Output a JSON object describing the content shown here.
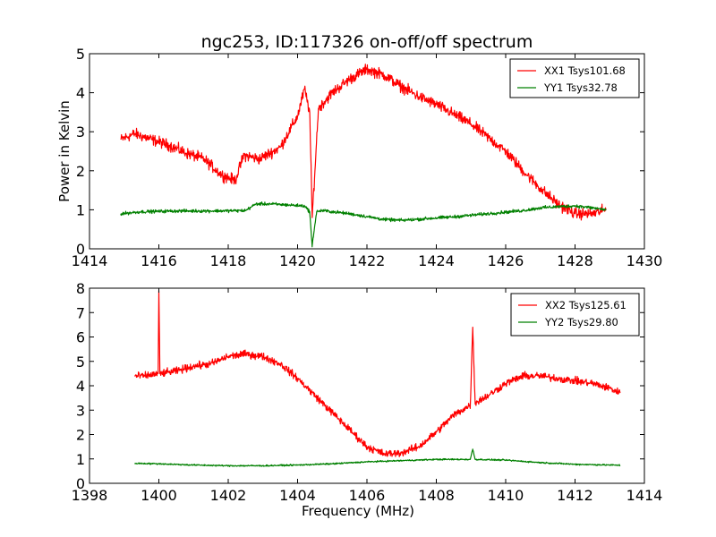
{
  "figure": {
    "title": "ngc253, ID:117326 on-off/off spectrum"
  },
  "chart_data": [
    {
      "type": "line",
      "title": "ngc253, ID:117326 on-off/off spectrum",
      "xlabel": "",
      "ylabel": "Power in Kelvin",
      "xlim": [
        1414,
        1430
      ],
      "ylim": [
        0,
        5
      ],
      "xticks": [
        "1414",
        "1416",
        "1418",
        "1420",
        "1422",
        "1424",
        "1426",
        "1428",
        "1430"
      ],
      "yticks": [
        "0",
        "1",
        "2",
        "3",
        "4",
        "5"
      ],
      "legend_position": "top-right",
      "grid": false,
      "series": [
        {
          "name": "XX1 Tsys101.68",
          "color": "#ff0000",
          "noise": 0.12,
          "x": [
            1414.9,
            1415.3,
            1415.8,
            1416.3,
            1416.8,
            1417.3,
            1417.8,
            1418.2,
            1418.45,
            1418.9,
            1419.5,
            1420.0,
            1420.2,
            1420.35,
            1420.42,
            1420.5,
            1420.6,
            1421.0,
            1421.5,
            1422.0,
            1422.5,
            1423.0,
            1423.5,
            1424.0,
            1424.5,
            1425.0,
            1425.5,
            1426.0,
            1426.5,
            1427.0,
            1427.5,
            1428.0,
            1428.5,
            1428.9
          ],
          "y": [
            2.8,
            2.95,
            2.8,
            2.65,
            2.45,
            2.3,
            1.9,
            1.75,
            2.4,
            2.3,
            2.6,
            3.4,
            4.1,
            3.5,
            0.8,
            2.0,
            3.6,
            4.0,
            4.35,
            4.6,
            4.45,
            4.15,
            3.9,
            3.7,
            3.45,
            3.2,
            2.85,
            2.5,
            2.0,
            1.55,
            1.15,
            0.9,
            0.9,
            1.0
          ]
        },
        {
          "name": "YY1 Tsys32.78",
          "color": "#008000",
          "noise": 0.035,
          "x": [
            1414.9,
            1415.5,
            1416.5,
            1417.5,
            1418.5,
            1418.8,
            1419.2,
            1419.8,
            1420.2,
            1420.35,
            1420.42,
            1420.45,
            1420.55,
            1420.7,
            1421.5,
            1422.5,
            1423.0,
            1423.5,
            1424.5,
            1425.5,
            1426.5,
            1427.0,
            1427.5,
            1428.0,
            1428.5,
            1428.9
          ],
          "y": [
            0.9,
            0.95,
            0.97,
            0.97,
            0.98,
            1.15,
            1.15,
            1.12,
            1.1,
            0.95,
            0.05,
            0.3,
            0.95,
            0.98,
            0.9,
            0.75,
            0.73,
            0.76,
            0.82,
            0.9,
            0.98,
            1.05,
            1.08,
            1.1,
            1.05,
            1.0
          ]
        }
      ]
    },
    {
      "type": "line",
      "title": "",
      "xlabel": "Frequency (MHz)",
      "ylabel": "",
      "xlim": [
        1398,
        1414
      ],
      "ylim": [
        0,
        8
      ],
      "xticks": [
        "1398",
        "1400",
        "1402",
        "1404",
        "1406",
        "1408",
        "1410",
        "1412",
        "1414"
      ],
      "yticks": [
        "0",
        "1",
        "2",
        "3",
        "4",
        "5",
        "6",
        "7",
        "8"
      ],
      "legend_position": "top-right",
      "grid": false,
      "series": [
        {
          "name": "XX2 Tsys125.61",
          "color": "#ff0000",
          "noise": 0.13,
          "x": [
            1399.3,
            1399.6,
            1399.98,
            1400.0,
            1400.03,
            1400.5,
            1401.0,
            1401.5,
            1402.0,
            1402.5,
            1403.0,
            1403.5,
            1404.0,
            1404.5,
            1405.0,
            1405.5,
            1406.0,
            1406.5,
            1407.0,
            1407.5,
            1408.0,
            1408.5,
            1408.98,
            1409.05,
            1409.12,
            1409.5,
            1410.0,
            1410.5,
            1411.0,
            1411.5,
            1412.0,
            1412.5,
            1413.0,
            1413.3
          ],
          "y": [
            4.4,
            4.4,
            4.5,
            7.9,
            4.5,
            4.6,
            4.8,
            4.9,
            5.2,
            5.3,
            5.2,
            4.9,
            4.3,
            3.6,
            2.9,
            2.2,
            1.5,
            1.2,
            1.25,
            1.5,
            2.1,
            2.8,
            3.2,
            6.4,
            3.3,
            3.6,
            4.1,
            4.4,
            4.4,
            4.3,
            4.2,
            4.1,
            3.9,
            3.7
          ]
        },
        {
          "name": "YY2 Tsys29.80",
          "color": "#008000",
          "noise": 0.025,
          "x": [
            1399.3,
            1400.0,
            1401.0,
            1402.0,
            1403.0,
            1404.0,
            1405.0,
            1406.0,
            1407.0,
            1408.0,
            1408.98,
            1409.05,
            1409.12,
            1410.0,
            1411.0,
            1412.0,
            1413.0,
            1413.3
          ],
          "y": [
            0.82,
            0.8,
            0.75,
            0.72,
            0.72,
            0.75,
            0.8,
            0.88,
            0.93,
            0.98,
            0.98,
            1.4,
            0.98,
            0.95,
            0.85,
            0.78,
            0.75,
            0.74
          ]
        }
      ]
    }
  ]
}
